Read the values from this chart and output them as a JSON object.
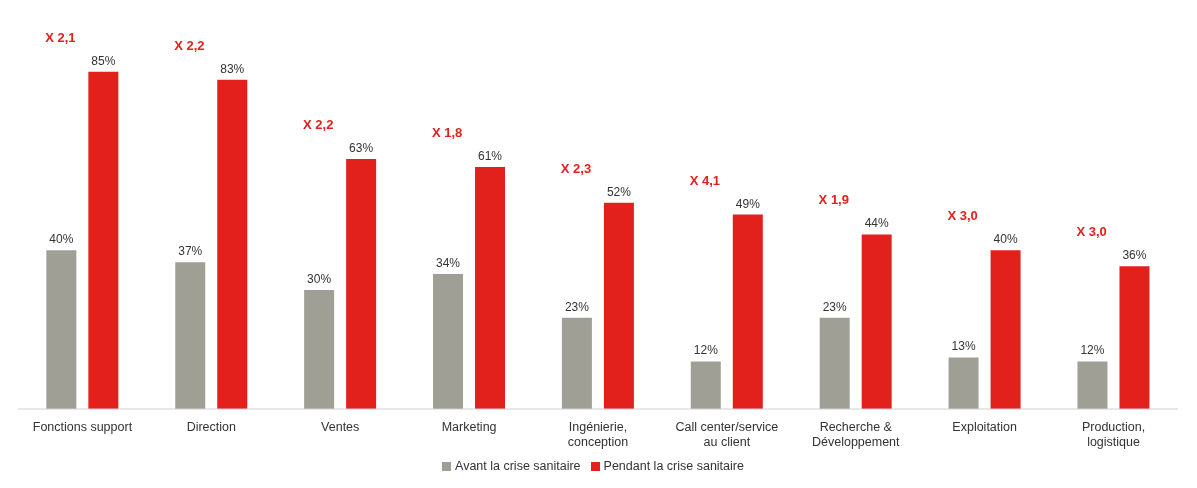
{
  "chart_data": {
    "type": "bar",
    "categories": [
      "Fonctions support",
      "Direction",
      "Ventes",
      "Marketing",
      "Ingénierie, conception",
      "Call center/service au client",
      "Recherche & Développement",
      "Exploitation",
      "Production, logistique"
    ],
    "series": [
      {
        "name": "Avant la crise sanitaire",
        "color": "#a09f96",
        "values": [
          40,
          37,
          30,
          34,
          23,
          12,
          23,
          13,
          12
        ],
        "value_labels": [
          "40%",
          "37%",
          "30%",
          "34%",
          "23%",
          "12%",
          "23%",
          "13%",
          "12%"
        ]
      },
      {
        "name": "Pendant la crise sanitaire",
        "color": "#e2201c",
        "values": [
          85,
          83,
          63,
          61,
          52,
          49,
          44,
          40,
          36
        ],
        "value_labels": [
          "85%",
          "83%",
          "63%",
          "61%",
          "52%",
          "49%",
          "44%",
          "40%",
          "36%"
        ]
      }
    ],
    "annotations": [
      "X 2,1",
      "X 2,2",
      "X 2,2",
      "X 1,8",
      "X 2,3",
      "X 4,1",
      "X 1,9",
      "X 3,0",
      "X 3,0"
    ],
    "legend": "bottom",
    "grid": false,
    "tick_labels": "x"
  }
}
